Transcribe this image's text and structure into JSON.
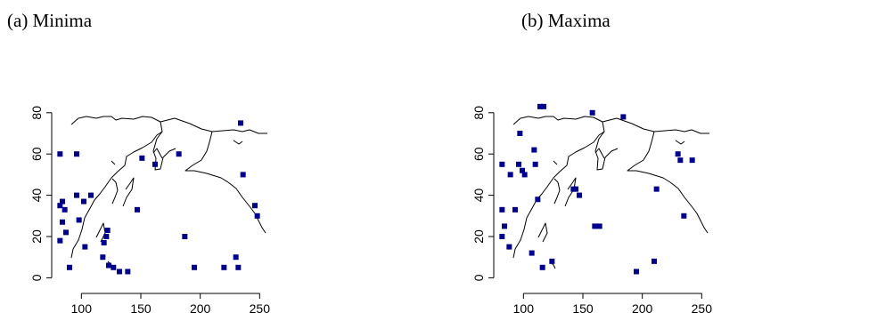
{
  "chart_data": [
    {
      "type": "scatter",
      "title": "(a) Minima",
      "xlabel": "",
      "ylabel": "",
      "xlim": [
        75,
        300
      ],
      "ylim": [
        -5,
        95
      ],
      "x_ticks": [
        "100",
        "150",
        "200",
        "250"
      ],
      "y_ticks": [
        "0",
        "20",
        "40",
        "60",
        "80"
      ],
      "grid": false,
      "points": [
        {
          "x": 82,
          "y": 60
        },
        {
          "x": 96,
          "y": 60
        },
        {
          "x": 82,
          "y": 35
        },
        {
          "x": 84,
          "y": 37
        },
        {
          "x": 84,
          "y": 27
        },
        {
          "x": 86,
          "y": 33
        },
        {
          "x": 82,
          "y": 18
        },
        {
          "x": 87,
          "y": 22
        },
        {
          "x": 90,
          "y": 5
        },
        {
          "x": 96,
          "y": 40
        },
        {
          "x": 98,
          "y": 28
        },
        {
          "x": 102,
          "y": 37
        },
        {
          "x": 103,
          "y": 15
        },
        {
          "x": 108,
          "y": 40
        },
        {
          "x": 119,
          "y": 17
        },
        {
          "x": 121,
          "y": 20
        },
        {
          "x": 122,
          "y": 23
        },
        {
          "x": 118,
          "y": 10
        },
        {
          "x": 123,
          "y": 6
        },
        {
          "x": 127,
          "y": 5
        },
        {
          "x": 132,
          "y": 3
        },
        {
          "x": 139,
          "y": 3
        },
        {
          "x": 147,
          "y": 33
        },
        {
          "x": 151,
          "y": 58
        },
        {
          "x": 162,
          "y": 55
        },
        {
          "x": 182,
          "y": 60
        },
        {
          "x": 187,
          "y": 20
        },
        {
          "x": 195,
          "y": 5
        },
        {
          "x": 220,
          "y": 5
        },
        {
          "x": 230,
          "y": 10
        },
        {
          "x": 232,
          "y": 5
        },
        {
          "x": 234,
          "y": 75
        },
        {
          "x": 236,
          "y": 50
        },
        {
          "x": 246,
          "y": 35
        },
        {
          "x": 248,
          "y": 30
        }
      ]
    },
    {
      "type": "scatter",
      "title": "(b) Maxima",
      "xlabel": "",
      "ylabel": "",
      "xlim": [
        75,
        300
      ],
      "ylim": [
        -5,
        95
      ],
      "x_ticks": [
        "100",
        "150",
        "200",
        "250"
      ],
      "y_ticks": [
        "0",
        "20",
        "40",
        "60",
        "80"
      ],
      "grid": false,
      "points": [
        {
          "x": 82,
          "y": 55
        },
        {
          "x": 82,
          "y": 33
        },
        {
          "x": 82,
          "y": 20
        },
        {
          "x": 84,
          "y": 25
        },
        {
          "x": 88,
          "y": 15
        },
        {
          "x": 89,
          "y": 50
        },
        {
          "x": 93,
          "y": 33
        },
        {
          "x": 96,
          "y": 55
        },
        {
          "x": 97,
          "y": 70
        },
        {
          "x": 99,
          "y": 52
        },
        {
          "x": 101,
          "y": 50
        },
        {
          "x": 107,
          "y": 12
        },
        {
          "x": 109,
          "y": 62
        },
        {
          "x": 110,
          "y": 55
        },
        {
          "x": 112,
          "y": 38
        },
        {
          "x": 114,
          "y": 83
        },
        {
          "x": 117,
          "y": 83
        },
        {
          "x": 116,
          "y": 5
        },
        {
          "x": 124,
          "y": 8
        },
        {
          "x": 142,
          "y": 43
        },
        {
          "x": 144,
          "y": 43
        },
        {
          "x": 147,
          "y": 40
        },
        {
          "x": 158,
          "y": 80
        },
        {
          "x": 160,
          "y": 25
        },
        {
          "x": 164,
          "y": 25
        },
        {
          "x": 184,
          "y": 78
        },
        {
          "x": 195,
          "y": 3
        },
        {
          "x": 210,
          "y": 8
        },
        {
          "x": 212,
          "y": 43
        },
        {
          "x": 230,
          "y": 60
        },
        {
          "x": 232,
          "y": 57
        },
        {
          "x": 235,
          "y": 30
        },
        {
          "x": 242,
          "y": 57
        }
      ]
    }
  ]
}
